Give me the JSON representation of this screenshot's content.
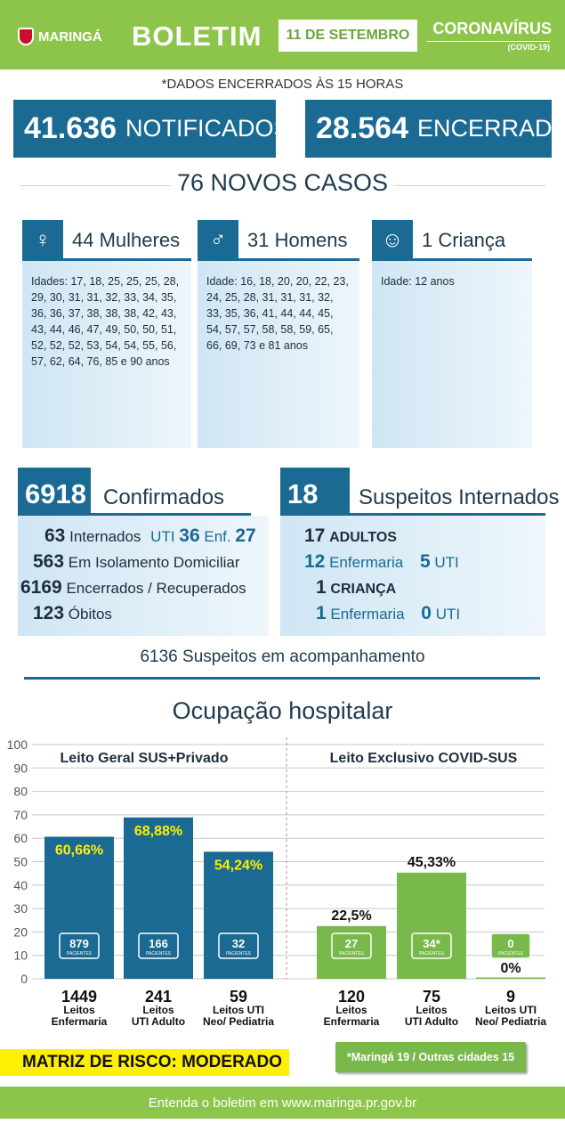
{
  "header": {
    "logo": "MARINGÁ",
    "title": "BOLETIM",
    "date": "11 DE SETEMBRO",
    "campaign": "CORONAVÍRUS",
    "campaign_sub": "(COVID-19)"
  },
  "note": "*DADOS ENCERRADOS ÀS 15 HORAS",
  "totals": {
    "notificados_value": "41.636",
    "notificados_label": "NOTIFICADOS",
    "encerrados_value": "28.564",
    "encerrados_label": "ENCERRADOS"
  },
  "novos_casos": "76 NOVOS CASOS",
  "groups": {
    "mulheres": {
      "title": "44 Mulheres",
      "ages": "Idades: 17, 18, 25, 25, 25, 28, 29, 30, 31, 31, 32, 33, 34, 35, 36, 36, 37, 38, 38, 38, 42, 43, 43, 44, 46, 47, 49, 50, 50, 51, 52, 52, 52, 53, 54, 54, 55, 56, 57, 62, 64, 76, 85 e 90 anos"
    },
    "homens": {
      "title": "31 Homens",
      "ages": "Idade: 16, 18, 20, 20, 22, 23, 24, 25, 28, 31, 31, 31, 32, 33, 35, 36, 41, 44, 44, 45, 54, 57, 57, 58, 58, 59, 65, 66, 69, 73 e 81 anos"
    },
    "crianca": {
      "title": "1 Criança",
      "ages": "Idade: 12 anos"
    }
  },
  "confirmados": {
    "value": "6918",
    "label": "Confirmados",
    "internados_value": "63",
    "internados_label": "Internados",
    "uti_label": "UTI",
    "uti_value": "36",
    "enf_label": "Enf.",
    "enf_value": "27",
    "isolamento_value": "563",
    "isolamento_label": "Em Isolamento Domiciliar",
    "recuperados_value": "6169",
    "recuperados_label": "Encerrados / Recuperados",
    "obitos_value": "123",
    "obitos_label": "Óbitos"
  },
  "suspeitos": {
    "value": "18",
    "label": "Suspeitos Internados",
    "adultos_value": "17",
    "adultos_label": "ADULTOS",
    "adultos_enf_value": "12",
    "adultos_enf_label": "Enfermaria",
    "adultos_uti_value": "5",
    "adultos_uti_label": "UTI",
    "crianca_value": "1",
    "crianca_label": "CRIANÇA",
    "crianca_enf_value": "1",
    "crianca_enf_label": "Enfermaria",
    "crianca_uti_value": "0",
    "crianca_uti_label": "UTI"
  },
  "acompanhamento": "6136 Suspeitos em acompanhamento",
  "ocupacao_title": "Ocupação hospitalar",
  "pacientes_label": "PACIENTES",
  "chart_data": {
    "type": "bar",
    "ylim": [
      0,
      100
    ],
    "yticks": [
      0,
      10,
      20,
      30,
      40,
      50,
      60,
      70,
      80,
      90,
      100
    ],
    "grid": true,
    "groups": [
      {
        "title": "Leito Geral SUS+Privado",
        "color": "#1a6a93",
        "bars": [
          {
            "value": 60.66,
            "label": "60,66%",
            "pacientes": "879",
            "leitos": "1449",
            "cat1": "Leitos",
            "cat2": "Enfermaria"
          },
          {
            "value": 68.88,
            "label": "68,88%",
            "pacientes": "166",
            "leitos": "241",
            "cat1": "Leitos",
            "cat2": "UTI Adulto"
          },
          {
            "value": 54.24,
            "label": "54,24%",
            "pacientes": "32",
            "leitos": "59",
            "cat1": "Leitos UTI",
            "cat2": "Neo/ Pediatria"
          }
        ]
      },
      {
        "title": "Leito Exclusivo COVID-SUS",
        "color": "#79b84a",
        "bars": [
          {
            "value": 22.5,
            "label": "22,5%",
            "pacientes": "27",
            "leitos": "120",
            "cat1": "Leitos",
            "cat2": "Enfermaria"
          },
          {
            "value": 45.33,
            "label": "45,33%",
            "pacientes": "34*",
            "leitos": "75",
            "cat1": "Leitos",
            "cat2": "UTI Adulto"
          },
          {
            "value": 0,
            "label": "0%",
            "pacientes": "0",
            "leitos": "9",
            "cat1": "Leitos UTI",
            "cat2": "Neo/ Pediatria"
          }
        ]
      }
    ]
  },
  "matriz_risco": "MATRIZ DE RISCO: MODERADO",
  "maringa_note": "*Maringá 19 / Outras cidades 15",
  "footer": "Entenda o boletim em www.maringa.pr.gov.br",
  "colors": {
    "green": "#8cc54a",
    "blue": "#1a6a93",
    "yellow": "#ffef00",
    "bar_label_yellow": "#ffef00"
  }
}
